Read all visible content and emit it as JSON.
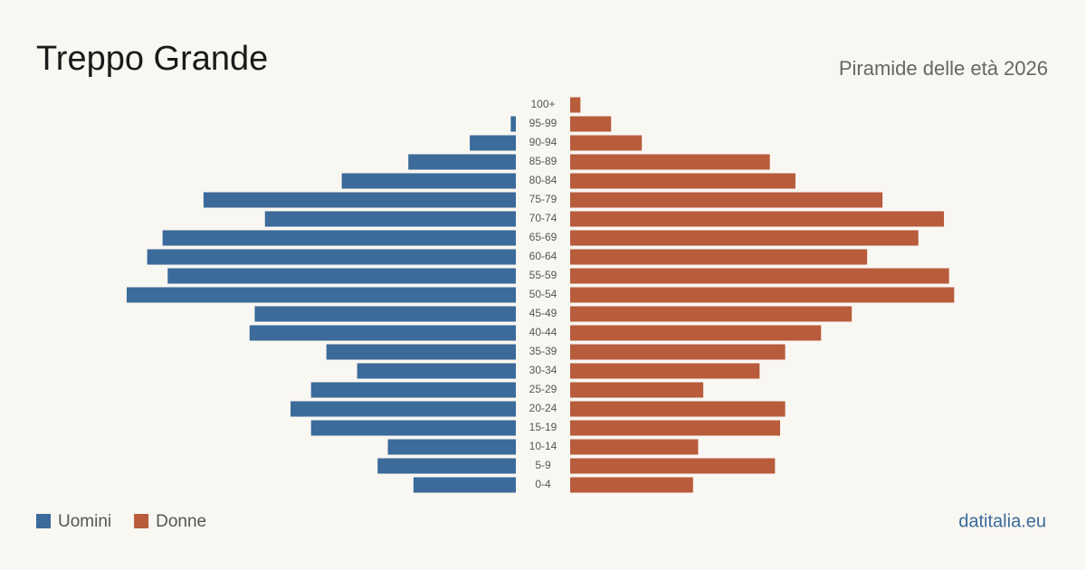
{
  "chart_data": {
    "type": "pyramid",
    "title": "Treppo Grande",
    "subtitle": "Piramide delle età 2026",
    "source": "datitalia.eu",
    "categories": [
      "100+",
      "95-99",
      "90-94",
      "85-89",
      "80-84",
      "75-79",
      "70-74",
      "65-69",
      "60-64",
      "55-59",
      "50-54",
      "45-49",
      "40-44",
      "35-39",
      "30-34",
      "25-29",
      "20-24",
      "15-19",
      "10-14",
      "5-9",
      "0-4"
    ],
    "series": [
      {
        "name": "Uomini",
        "color": "#3b6a9b",
        "values": [
          0,
          1,
          9,
          21,
          34,
          61,
          49,
          69,
          72,
          68,
          76,
          51,
          52,
          37,
          31,
          40,
          44,
          40,
          25,
          27,
          20
        ]
      },
      {
        "name": "Donne",
        "color": "#b85c3c",
        "values": [
          2,
          8,
          14,
          39,
          44,
          61,
          73,
          68,
          58,
          74,
          75,
          55,
          49,
          42,
          37,
          26,
          42,
          41,
          25,
          40,
          24
        ]
      }
    ]
  }
}
